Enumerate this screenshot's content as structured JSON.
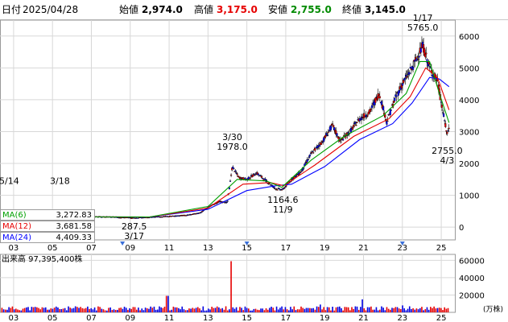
{
  "header": {
    "date_label": "日付",
    "date": "2025/04/28",
    "open_label": "始値",
    "open": "2,974.0",
    "high_label": "高値",
    "high": "3,175.0",
    "low_label": "安値",
    "low": "2,755.0",
    "close_label": "終値",
    "close": "3,145.0"
  },
  "colors": {
    "up": "#e60000",
    "down": "#0000ff",
    "high": "#e60000",
    "low": "#008a00",
    "ma6": "#00a000",
    "ma12": "#e60000",
    "ma24": "#0000ff",
    "grid": "#d8d8d8",
    "marker": "#3a6fd8",
    "vol": "#e60000",
    "vol2": "#0000e0"
  },
  "ma_legend": [
    {
      "label": "MA(6)",
      "value": "3,272.83"
    },
    {
      "label": "MA(12)",
      "value": "3,681.58"
    },
    {
      "label": "MA(24)",
      "value": "4,409.33"
    }
  ],
  "volume_panel": {
    "title": "出来高 97,395,400株",
    "unit": "(万株)"
  },
  "chart_data": [
    {
      "type": "line",
      "series_type": "candlestick_monthly",
      "ylim": [
        -400,
        6500
      ],
      "y_ticks": [
        0,
        1000,
        2000,
        3000,
        4000,
        5000,
        6000
      ],
      "x_tick_labels": [
        "03",
        "05",
        "07",
        "09",
        "11",
        "13",
        "15",
        "17",
        "19",
        "21",
        "23",
        "25"
      ],
      "x_range": [
        2002.3,
        2025.7
      ],
      "annotations": [
        {
          "text": "1/17",
          "x": 2024.05,
          "y": 5765
        },
        {
          "text": "5765.0",
          "x": 2024.05,
          "y": 5765
        },
        {
          "text": "3/30",
          "x": 2014.25,
          "y": 1978
        },
        {
          "text": "1978.0",
          "x": 2014.25,
          "y": 1978
        },
        {
          "text": "1164.6",
          "x": 2016.85,
          "y": 1164.6
        },
        {
          "text": "11/9",
          "x": 2016.85,
          "y": 1164.6
        },
        {
          "text": "287.5",
          "x": 2009.2,
          "y": 287.5
        },
        {
          "text": "3/17",
          "x": 2009.2,
          "y": 287.5
        },
        {
          "text": "2755.0",
          "x": 2025.3,
          "y": 2755
        },
        {
          "text": "4/3",
          "x": 2025.3,
          "y": 2755
        },
        {
          "text": "5/14",
          "x": 2003.4,
          "y": 900
        },
        {
          "text": "3/18",
          "x": 2003.4,
          "y": 900
        }
      ],
      "event_markers_x": [
        2008.6,
        2015.0,
        2023.0
      ],
      "price_points": [
        [
          2002.4,
          330
        ],
        [
          2004.0,
          340
        ],
        [
          2005.0,
          320
        ],
        [
          2006.0,
          340
        ],
        [
          2007.0,
          330
        ],
        [
          2008.0,
          320
        ],
        [
          2009.2,
          290
        ],
        [
          2010.0,
          310
        ],
        [
          2011.0,
          340
        ],
        [
          2012.0,
          380
        ],
        [
          2012.6,
          450
        ],
        [
          2013.2,
          700
        ],
        [
          2013.6,
          800
        ],
        [
          2014.0,
          780
        ],
        [
          2014.25,
          1900
        ],
        [
          2014.6,
          1550
        ],
        [
          2015.0,
          1500
        ],
        [
          2015.5,
          1700
        ],
        [
          2016.0,
          1450
        ],
        [
          2016.5,
          1200
        ],
        [
          2016.85,
          1180
        ],
        [
          2017.3,
          1500
        ],
        [
          2017.8,
          1750
        ],
        [
          2018.3,
          2300
        ],
        [
          2018.9,
          2700
        ],
        [
          2019.4,
          3200
        ],
        [
          2019.8,
          2700
        ],
        [
          2020.3,
          3000
        ],
        [
          2020.8,
          3400
        ],
        [
          2021.3,
          3600
        ],
        [
          2021.8,
          4200
        ],
        [
          2022.2,
          3300
        ],
        [
          2022.6,
          4000
        ],
        [
          2023.0,
          4500
        ],
        [
          2023.5,
          5000
        ],
        [
          2024.05,
          5700
        ],
        [
          2024.4,
          5000
        ],
        [
          2024.8,
          4600
        ],
        [
          2025.0,
          3900
        ],
        [
          2025.3,
          2900
        ],
        [
          2025.4,
          3150
        ]
      ],
      "ma6_points": [
        [
          2002.4,
          330
        ],
        [
          2010.0,
          320
        ],
        [
          2013.0,
          650
        ],
        [
          2014.5,
          1500
        ],
        [
          2016.0,
          1450
        ],
        [
          2016.8,
          1250
        ],
        [
          2018.3,
          2100
        ],
        [
          2020.0,
          2850
        ],
        [
          2022.0,
          3500
        ],
        [
          2023.2,
          4200
        ],
        [
          2023.9,
          5200
        ],
        [
          2024.4,
          5200
        ],
        [
          2024.9,
          4200
        ],
        [
          2025.4,
          3280
        ]
      ],
      "ma12_points": [
        [
          2002.4,
          330
        ],
        [
          2010.0,
          320
        ],
        [
          2013.0,
          600
        ],
        [
          2014.8,
          1350
        ],
        [
          2016.2,
          1400
        ],
        [
          2016.9,
          1300
        ],
        [
          2018.5,
          1950
        ],
        [
          2020.5,
          2850
        ],
        [
          2022.3,
          3400
        ],
        [
          2023.4,
          4100
        ],
        [
          2024.2,
          5000
        ],
        [
          2024.8,
          4700
        ],
        [
          2025.4,
          3680
        ]
      ],
      "ma24_points": [
        [
          2002.4,
          330
        ],
        [
          2010.0,
          320
        ],
        [
          2013.0,
          560
        ],
        [
          2015.0,
          1150
        ],
        [
          2016.5,
          1300
        ],
        [
          2017.3,
          1350
        ],
        [
          2019.0,
          1900
        ],
        [
          2020.8,
          2750
        ],
        [
          2022.5,
          3250
        ],
        [
          2023.5,
          3900
        ],
        [
          2024.4,
          4700
        ],
        [
          2024.9,
          4650
        ],
        [
          2025.4,
          4410
        ]
      ]
    },
    {
      "type": "bar",
      "series_type": "volume",
      "ylim": [
        0,
        65000
      ],
      "y_ticks": [
        20000,
        40000,
        60000
      ],
      "x_tick_labels": [
        "03",
        "05",
        "07",
        "09",
        "11",
        "13",
        "15",
        "17",
        "19",
        "21",
        "23",
        "25"
      ],
      "peaks": [
        [
          2010.9,
          19000
        ],
        [
          2014.2,
          59000
        ],
        [
          2018.8,
          9000
        ],
        [
          2020.9,
          15000
        ],
        [
          2023.0,
          8000
        ]
      ]
    }
  ]
}
